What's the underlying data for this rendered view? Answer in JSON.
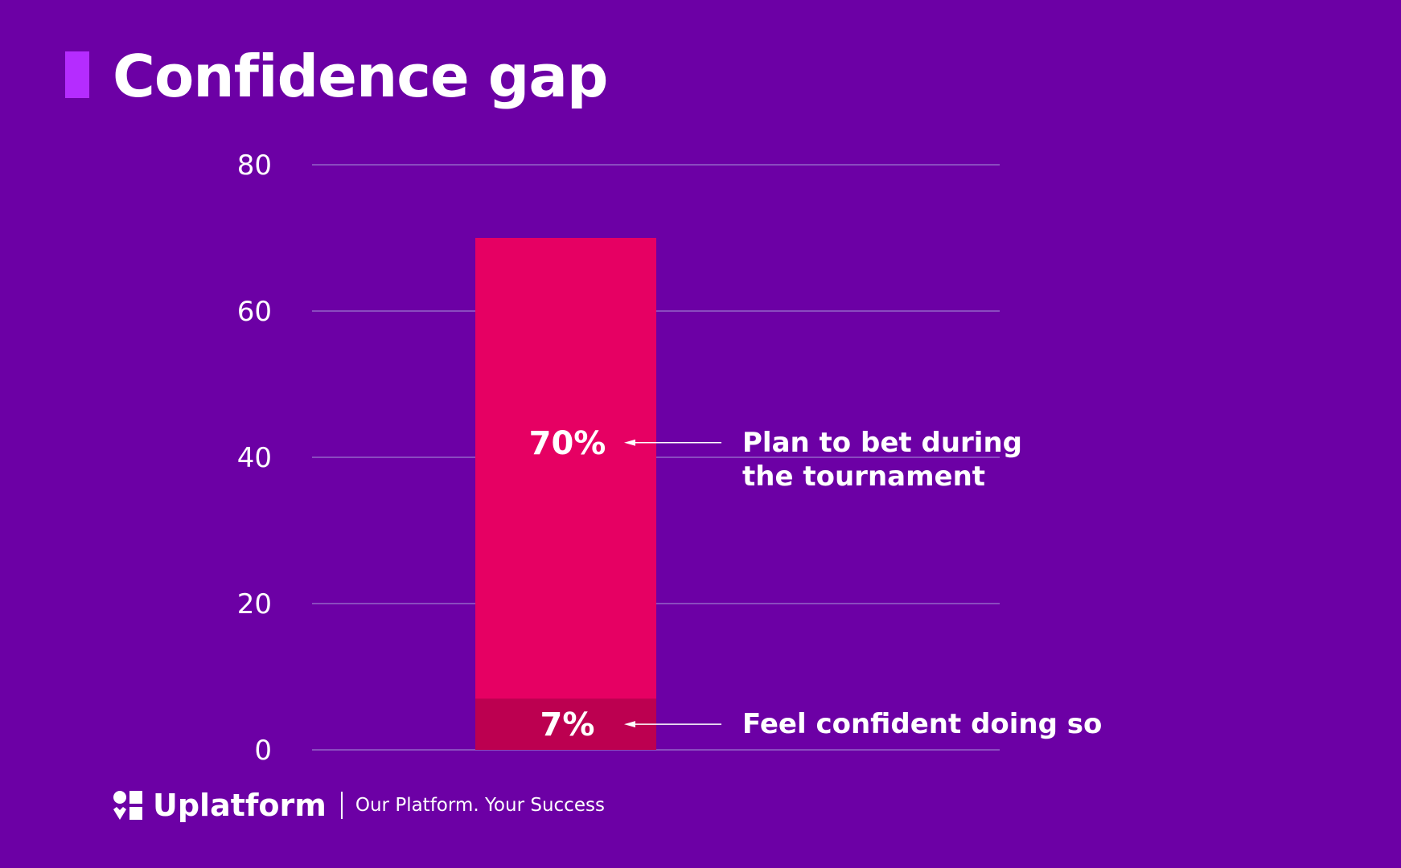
{
  "title": "Confidence gap",
  "colors": {
    "background": "#6c00a5",
    "accent": "#b52cff",
    "bar_main": "#e60063",
    "bar_overlay": "#bc0050",
    "grid": "#8a4bbf"
  },
  "chart_data": {
    "type": "bar",
    "ylim": [
      0,
      80
    ],
    "yticks": [
      0,
      20,
      40,
      60,
      80
    ],
    "grid": true,
    "bars": [
      {
        "value": 70,
        "value_label": "70%",
        "annotation": [
          "Plan to bet during",
          "the tournament"
        ]
      },
      {
        "value": 7,
        "value_label": "7%",
        "annotation": [
          "Feel confident doing so"
        ]
      }
    ]
  },
  "footer": {
    "logo_icon": "uplatform-logo-icon",
    "brand": "Uplatform",
    "tagline": "Our Platform. Your Success"
  }
}
